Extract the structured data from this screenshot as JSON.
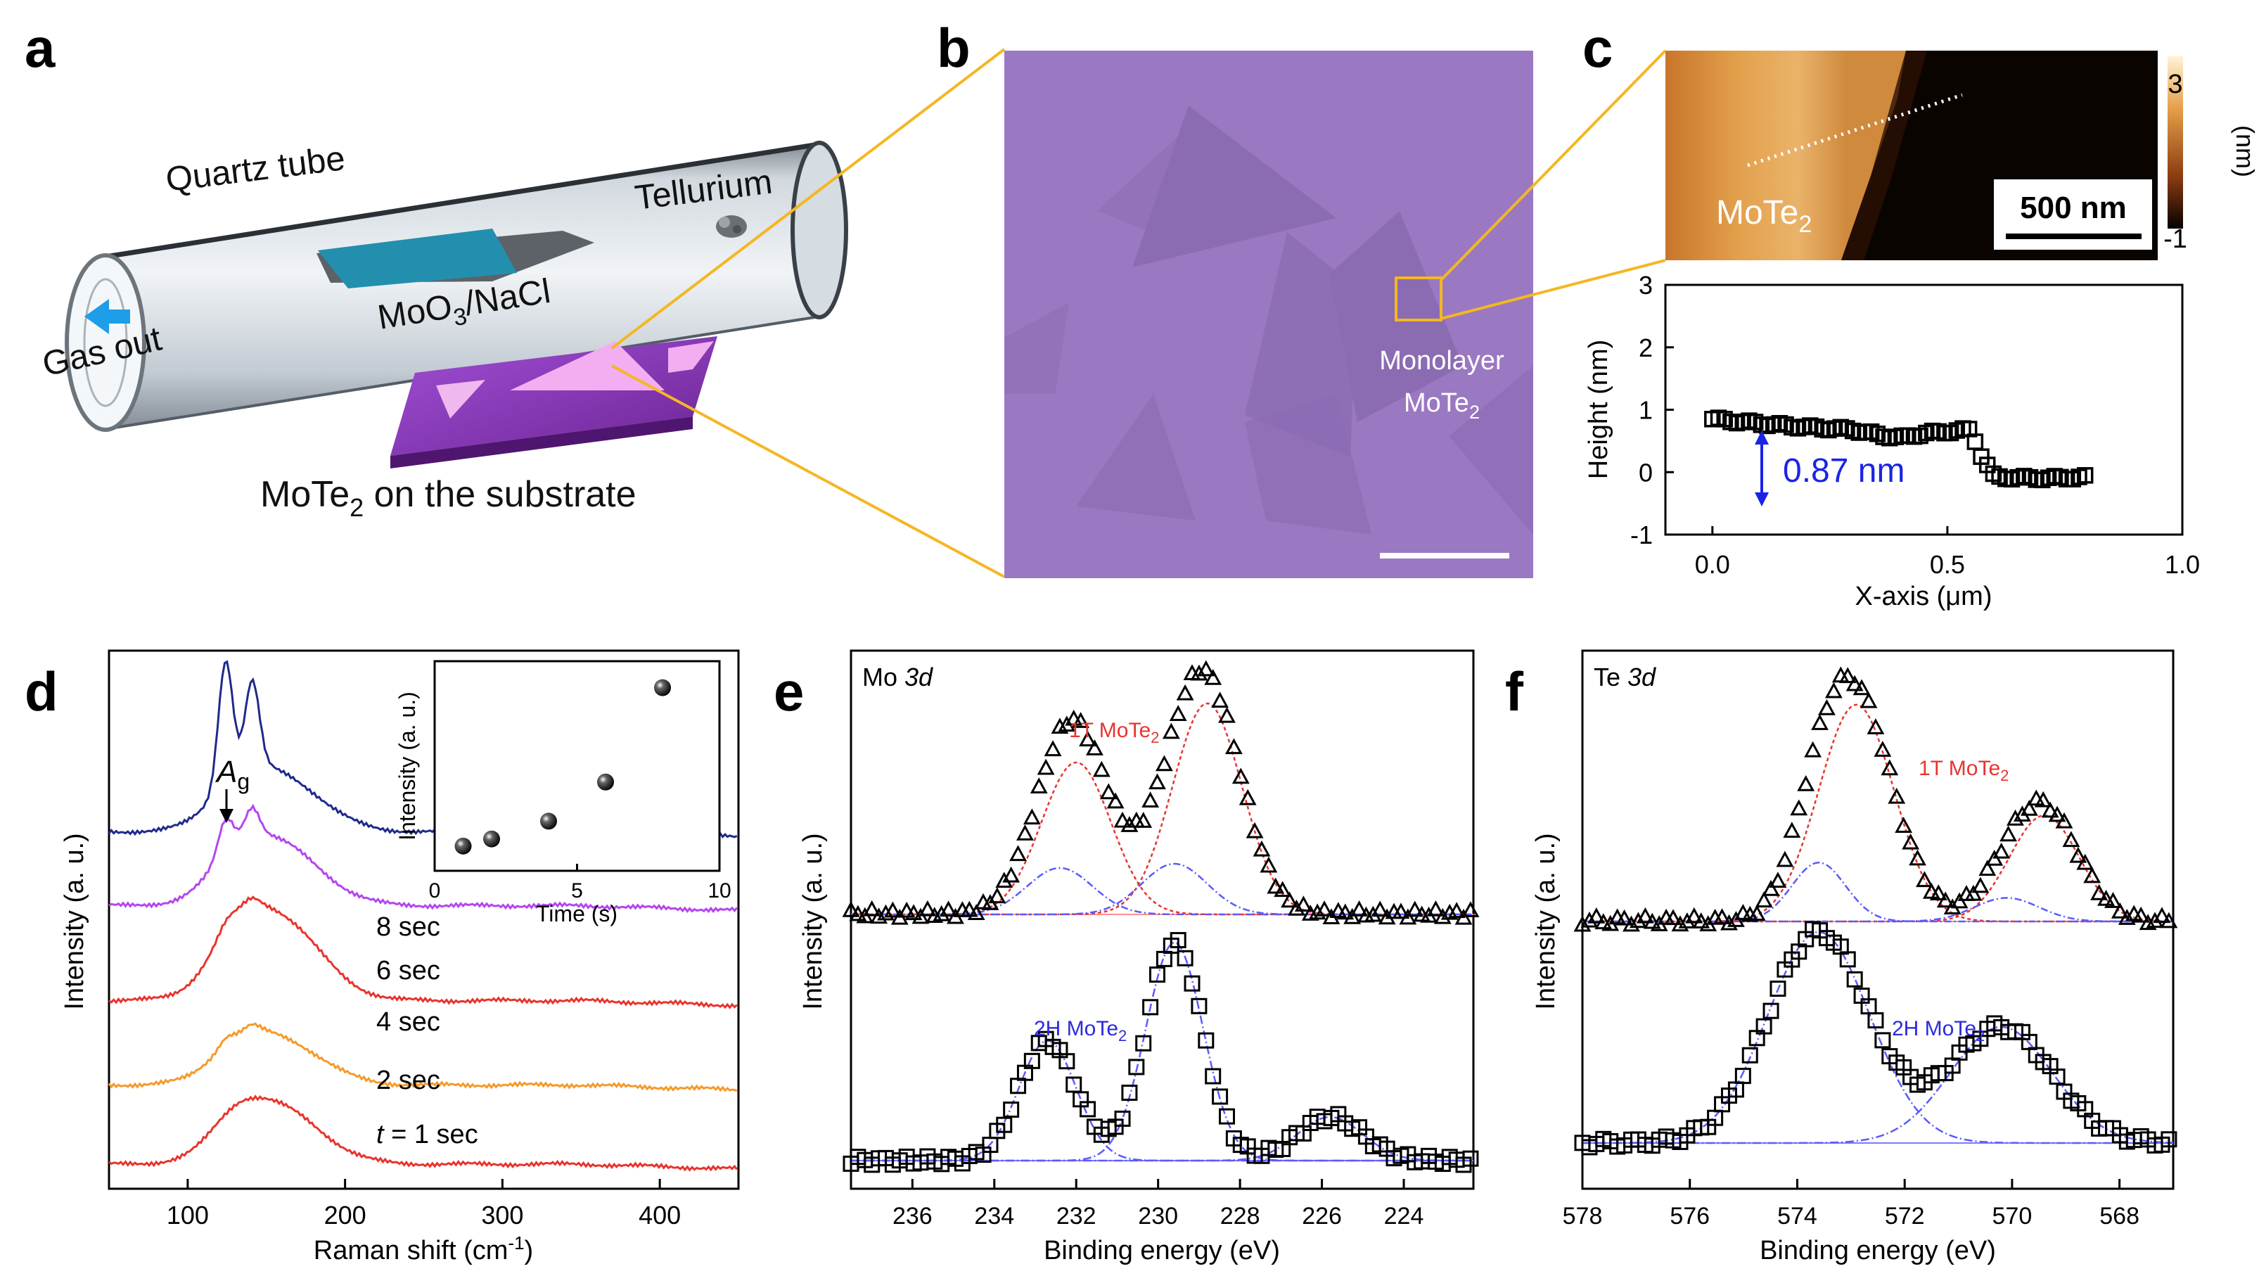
{
  "panel_letters": {
    "a": "a",
    "b": "b",
    "c": "c",
    "d": "d",
    "e": "e",
    "f": "f"
  },
  "colors": {
    "red": "#e8342e",
    "blue": "#2b2bdc",
    "blue_line": "#5a5aff",
    "orange": "#f59a2a",
    "purple": "#b446f0",
    "navy": "#1f2a8a",
    "substrate": "#8a3ab8",
    "optical": "#9b78c2",
    "afm_bright": "#e7a24e",
    "annot_blue": "#1a24e6"
  },
  "panel_a": {
    "quartz_tube": "Quartz tube",
    "tellurium": "Tellurium",
    "gas_out": "Gas out",
    "precursor_main": "MoO",
    "precursor_sub": "3",
    "precursor_tail": "/NaCl",
    "substrate_main": "MoTe",
    "substrate_sub": "2",
    "substrate_tail": " on the substrate"
  },
  "panel_b": {
    "label_line1": "Monolayer",
    "label_line2_main": "MoTe",
    "label_line2_sub": "2"
  },
  "panel_c": {
    "afm_label_main": "MoTe",
    "afm_label_sub": "2",
    "scale_bar": "500 nm",
    "colorbar_max": "3",
    "colorbar_min": "-1",
    "colorbar_unit": "(nm)",
    "step_height": "0.87 nm"
  },
  "chart_data": [
    {
      "id": "c-profile",
      "type": "scatter",
      "xlabel": "X-axis  (μm)",
      "ylabel": "Height (nm)",
      "xlim": [
        -0.1,
        1.0
      ],
      "ylim": [
        -1,
        3
      ],
      "xticks": [
        "0.0",
        "0.5",
        "1.0"
      ],
      "yticks": [
        "-1",
        "0",
        "1",
        "2",
        "3"
      ],
      "profile": {
        "x": [
          0.0,
          0.1,
          0.2,
          0.3,
          0.35,
          0.4,
          0.45,
          0.5,
          0.55,
          0.57,
          0.6,
          0.7,
          0.8
        ],
        "y": [
          0.85,
          0.78,
          0.72,
          0.68,
          0.6,
          0.55,
          0.62,
          0.65,
          0.68,
          0.3,
          -0.08,
          -0.1,
          -0.08
        ]
      }
    },
    {
      "id": "d-raman",
      "type": "line",
      "xlabel_main": "Raman shift (cm",
      "xlabel_sup": "-1",
      "xlabel_tail": ")",
      "ylabel": "Intensity (a. u.)",
      "xlim": [
        50,
        450
      ],
      "xticks": [
        "100",
        "200",
        "300",
        "400"
      ],
      "peak_label_main": "A",
      "peak_label_sub": "g",
      "series": [
        {
          "name": "t = 1 sec",
          "name_italic": "t",
          "name_rest": " = 1 sec",
          "color": "#e8342e",
          "offset": 0,
          "a1": 0,
          "a2": 0,
          "broad": 0.55
        },
        {
          "name": "2 sec",
          "color": "#f59a2a",
          "offset": 0.75,
          "a1": 0.06,
          "a2": 0.05,
          "broad": 0.45
        },
        {
          "name": "4 sec",
          "color": "#e8342e",
          "offset": 1.55,
          "a1": 0.05,
          "a2": 0.05,
          "broad": 0.8
        },
        {
          "name": "6 sec",
          "color": "#b446f0",
          "offset": 2.45,
          "a1": 0.3,
          "a2": 0.25,
          "broad": 0.6
        },
        {
          "name": "8 sec",
          "color": "#1f2a8a",
          "offset": 3.15,
          "a1": 1.15,
          "a2": 0.8,
          "broad": 0.55
        }
      ],
      "inset": {
        "xlabel": "Time (s)",
        "ylabel": "Intensity (a. u.)",
        "xlim": [
          0,
          10
        ],
        "xticks": [
          "0",
          "5",
          "10"
        ],
        "x": [
          1,
          2,
          4,
          6,
          8
        ],
        "y": [
          0.06,
          0.1,
          0.2,
          0.42,
          0.95
        ]
      }
    },
    {
      "id": "e-mo3d",
      "type": "scatter",
      "title_main": "Mo ",
      "title_italic": "3d",
      "xlabel": "Binding energy (eV)",
      "ylabel": "Intensity (a. u.)",
      "xlim": [
        237.5,
        222.3
      ],
      "xticks": [
        "236",
        "234",
        "232",
        "230",
        "228",
        "226",
        "224"
      ],
      "label_1t_main": "1T MoTe",
      "label_1t_sub": "2",
      "label_2h_main": "2H MoTe",
      "label_2h_sub": "2",
      "top_1t_peaks": [
        [
          232.0,
          0.72,
          0.85
        ],
        [
          228.8,
          1.0,
          0.85
        ]
      ],
      "top_2h_peaks": [
        [
          232.4,
          0.22,
          0.8
        ],
        [
          229.6,
          0.24,
          0.8
        ]
      ],
      "bottom_2h_peaks": [
        [
          232.7,
          0.55,
          0.7
        ],
        [
          229.6,
          1.0,
          0.7
        ],
        [
          225.8,
          0.2,
          0.8
        ]
      ]
    },
    {
      "id": "f-te3d",
      "type": "scatter",
      "title_main": "Te ",
      "title_italic": "3d",
      "xlabel": "Binding energy (eV)",
      "ylabel": "Intensity (a. u.)",
      "xlim": [
        578,
        567
      ],
      "xticks": [
        "578",
        "576",
        "574",
        "572",
        "570",
        "568"
      ],
      "label_1t_main": "1T MoTe",
      "label_1t_sub": "2",
      "label_2h_main": "2H MoTe",
      "label_2h_sub": "2",
      "top_1t_peaks": [
        [
          572.9,
          0.92,
          0.7
        ],
        [
          569.4,
          0.45,
          0.65
        ]
      ],
      "top_2h_peaks": [
        [
          573.6,
          0.25,
          0.5
        ],
        [
          570.1,
          0.1,
          0.6
        ]
      ],
      "bottom_2h_peaks": [
        [
          573.6,
          1.0,
          0.95
        ],
        [
          570.2,
          0.55,
          0.95
        ]
      ]
    }
  ]
}
